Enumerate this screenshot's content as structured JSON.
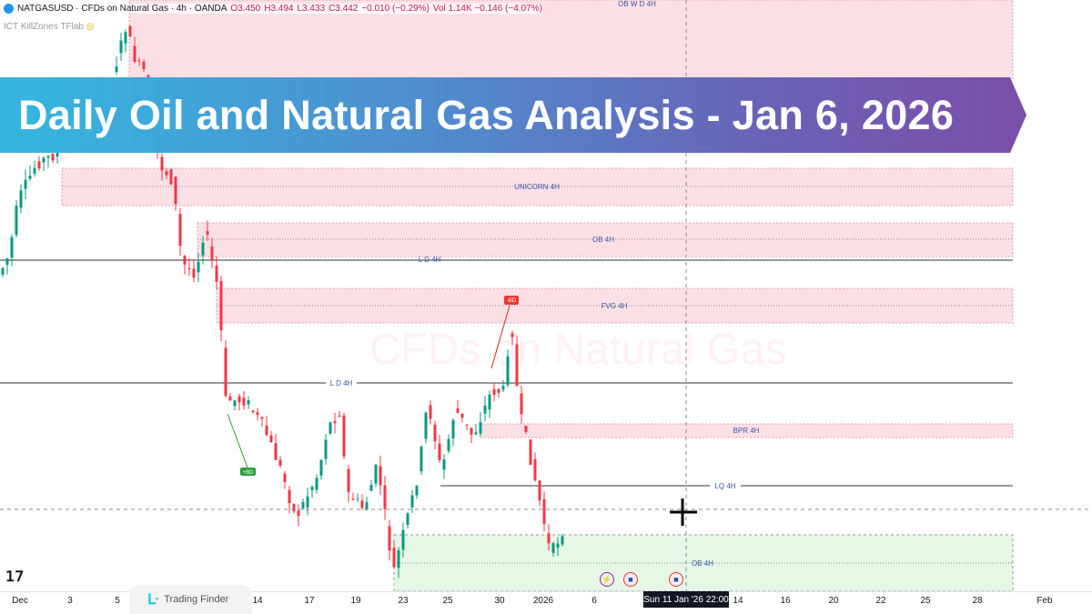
{
  "header": {
    "symbol": "NATGASUSD · CFDs on Natural Gas · 4h · OANDA",
    "open": "O3.450",
    "high": "H3.494",
    "low": "L3.433",
    "close": "C3.442",
    "change": "−0.010 (−0.29%)",
    "vol": "Vol 1.14K −0.146 (−4.07%)",
    "indicator": "ICT KillZones TFlab"
  },
  "banner": {
    "title": "Daily Oil and Natural Gas Analysis - Jan 6, 2026"
  },
  "watermark": "CFDs on Natural Gas",
  "zones": {
    "ob_wd": "OB W D 4H",
    "unicorn": "UNICORN 4H",
    "ob1": "OB 4H",
    "ld1": "L D 4H",
    "fvg": "FVG 4H",
    "ld2": "L D 4H",
    "bpr": "BPR 4H",
    "lq": "LQ 4H",
    "ob2": "OB 4H"
  },
  "markers": {
    "bull": "+BD",
    "bear": "-BD"
  },
  "xaxis": [
    "Dec",
    "3",
    "5",
    "14",
    "17",
    "19",
    "23",
    "25",
    "30",
    "2026",
    "6",
    "14",
    "16",
    "20",
    "22",
    "25",
    "28",
    "Feb"
  ],
  "crosshair_label": "Sun 11 Jan '26   22:00",
  "logo": "Trading Finder",
  "tv_logo": "TV",
  "colors": {
    "up": "#089981",
    "down": "#f23645",
    "supply": "#fde0e6",
    "demand": "#e6f7e6",
    "banner_start": "#34b6e0",
    "banner_end": "#7b4ea8"
  }
}
